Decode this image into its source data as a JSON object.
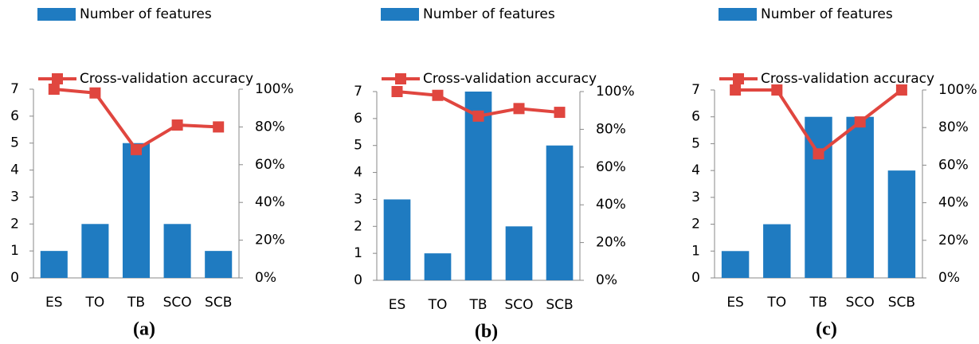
{
  "chart_data": [
    {
      "type": "bar",
      "caption": "(a)",
      "categories": [
        "ES",
        "TO",
        "TB",
        "SCO",
        "SCB"
      ],
      "series": [
        {
          "name": "Number of features",
          "color": "#1f7bc1",
          "values": [
            1,
            2,
            5,
            2,
            1
          ]
        },
        {
          "name": "Cross-validation accuracy",
          "color": "#e0463f",
          "type": "line",
          "axis": "y2",
          "values": [
            100,
            98,
            68,
            81,
            80
          ]
        }
      ],
      "ylim": [
        0,
        7
      ],
      "yticks": [
        0,
        1,
        2,
        3,
        4,
        5,
        6,
        7
      ],
      "y2lim": [
        0,
        100
      ],
      "y2ticks": [
        {
          "value": 0,
          "label": "0%"
        },
        {
          "value": 20,
          "label": "20%"
        },
        {
          "value": 40,
          "label": "40%"
        },
        {
          "value": 60,
          "label": "60%"
        },
        {
          "value": 80,
          "label": "80%"
        },
        {
          "value": 100,
          "label": "100%"
        }
      ],
      "grid": false
    },
    {
      "type": "bar",
      "caption": "(b)",
      "categories": [
        "ES",
        "TO",
        "TB",
        "SCO",
        "SCB"
      ],
      "series": [
        {
          "name": "Number of features",
          "color": "#1f7bc1",
          "values": [
            3,
            1,
            7,
            2,
            5
          ]
        },
        {
          "name": "Cross-validation accuracy",
          "color": "#e0463f",
          "type": "line",
          "axis": "y2",
          "values": [
            100,
            98,
            87,
            91,
            89
          ]
        }
      ],
      "ylim": [
        0,
        7
      ],
      "yticks": [
        0,
        1,
        2,
        3,
        4,
        5,
        6,
        7
      ],
      "y2lim": [
        0,
        100
      ],
      "y2ticks": [
        {
          "value": 0,
          "label": "0%"
        },
        {
          "value": 20,
          "label": "20%"
        },
        {
          "value": 40,
          "label": "40%"
        },
        {
          "value": 60,
          "label": "60%"
        },
        {
          "value": 80,
          "label": "80%"
        },
        {
          "value": 100,
          "label": "100%"
        }
      ],
      "grid": false
    },
    {
      "type": "bar",
      "caption": "(c)",
      "categories": [
        "ES",
        "TO",
        "TB",
        "SCO",
        "SCB"
      ],
      "series": [
        {
          "name": "Number of features",
          "color": "#1f7bc1",
          "values": [
            1,
            2,
            6,
            6,
            4
          ]
        },
        {
          "name": "Cross-validation accuracy",
          "color": "#e0463f",
          "type": "line",
          "axis": "y2",
          "values": [
            100,
            100,
            66,
            83,
            100
          ]
        }
      ],
      "ylim": [
        0,
        7
      ],
      "yticks": [
        0,
        1,
        2,
        3,
        4,
        5,
        6,
        7
      ],
      "y2lim": [
        0,
        100
      ],
      "y2ticks": [
        {
          "value": 0,
          "label": "0%"
        },
        {
          "value": 20,
          "label": "20%"
        },
        {
          "value": 40,
          "label": "40%"
        },
        {
          "value": 60,
          "label": "60%"
        },
        {
          "value": 80,
          "label": "80%"
        },
        {
          "value": 100,
          "label": "100%"
        }
      ],
      "grid": false
    }
  ]
}
